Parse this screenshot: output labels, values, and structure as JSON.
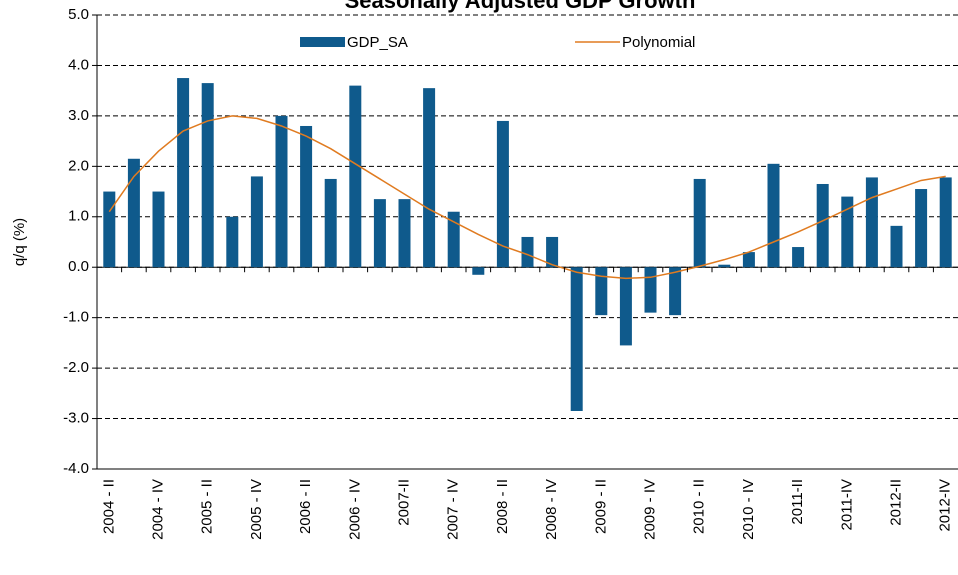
{
  "chart_data": {
    "type": "bar",
    "title": "Seasonally Adjusted GDP Growth",
    "y_label": "q/q (%)",
    "categories": [
      "2004 - II",
      null,
      "2004 - IV",
      null,
      "2005 - II",
      null,
      "2005 - IV",
      null,
      "2006 - II",
      null,
      "2006 - IV",
      null,
      "2007-II",
      null,
      "2007 - IV",
      null,
      "2008 - II",
      null,
      "2008 - IV",
      null,
      "2009 - II",
      null,
      "2009 - IV",
      null,
      "2010 - II",
      null,
      "2010 - IV",
      null,
      "2011-II",
      null,
      "2011-IV",
      null,
      "2012-II",
      null,
      "2012-IV"
    ],
    "series": [
      {
        "name": "GDP_SA",
        "type": "bar",
        "color": "#0f5a8c",
        "values": [
          1.5,
          2.15,
          1.5,
          3.75,
          3.65,
          1.0,
          1.8,
          3.0,
          2.8,
          1.75,
          3.6,
          1.35,
          1.35,
          3.55,
          1.1,
          -0.15,
          2.9,
          0.6,
          0.6,
          -2.85,
          -0.95,
          -1.55,
          -0.9,
          -0.95,
          1.75,
          0.05,
          0.3,
          2.05,
          0.4,
          1.65,
          1.4,
          1.78,
          0.82,
          1.55,
          1.78
        ]
      },
      {
        "name": "Polynomial",
        "type": "line",
        "color": "#e07b20",
        "values": [
          1.1,
          1.8,
          2.3,
          2.7,
          2.9,
          3.0,
          2.95,
          2.8,
          2.6,
          2.35,
          2.05,
          1.75,
          1.45,
          1.15,
          0.9,
          0.65,
          0.42,
          0.25,
          0.05,
          -0.1,
          -0.18,
          -0.22,
          -0.2,
          -0.1,
          0.02,
          0.15,
          0.3,
          0.5,
          0.7,
          0.92,
          1.15,
          1.38,
          1.55,
          1.72,
          1.8
        ]
      }
    ],
    "ylim": [
      -4,
      5
    ],
    "yticks": [
      {
        "value": 5,
        "label": "5.0"
      },
      {
        "value": 4,
        "label": "4.0"
      },
      {
        "value": 3,
        "label": "3.0"
      },
      {
        "value": 2,
        "label": "2.0"
      },
      {
        "value": 1,
        "label": "1.0"
      },
      {
        "value": 0,
        "label": "0.0"
      },
      {
        "value": -1,
        "label": "-1.0"
      },
      {
        "value": -2,
        "label": "-2.0"
      },
      {
        "value": -3,
        "label": "-3.0"
      },
      {
        "value": -4,
        "label": "-4.0"
      }
    ],
    "grid": true,
    "legend": "top"
  }
}
